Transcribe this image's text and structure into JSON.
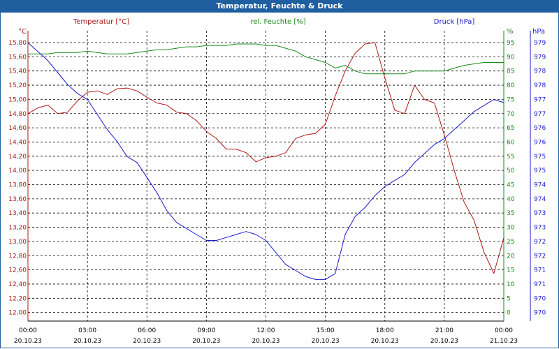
{
  "window": {
    "title": "Temperatur, Feuchte & Druck"
  },
  "colors": {
    "temperature": "#b01818",
    "humidity": "#1a8a1a",
    "pressure": "#1a1acc",
    "grid": "#000000",
    "titlebar": "#1f5fa0"
  },
  "chart_data": {
    "type": "line",
    "title": "Temperatur, Feuchte & Druck",
    "grid": true,
    "x_ticks": [
      {
        "time": "00:00",
        "date": "20.10.23"
      },
      {
        "time": "03:00",
        "date": "20.10.23"
      },
      {
        "time": "06:00",
        "date": "20.10.23"
      },
      {
        "time": "09:00",
        "date": "20.10.23"
      },
      {
        "time": "12:00",
        "date": "20.10.23"
      },
      {
        "time": "15:00",
        "date": "20.10.23"
      },
      {
        "time": "18:00",
        "date": "20.10.23"
      },
      {
        "time": "21:00",
        "date": "20.10.23"
      },
      {
        "time": "00:00",
        "date": "21.10.23"
      }
    ],
    "x_hours": [
      0,
      0.5,
      1,
      1.5,
      2,
      2.5,
      3,
      3.5,
      4,
      4.5,
      5,
      5.5,
      6,
      6.5,
      7,
      7.5,
      8,
      8.5,
      9,
      9.5,
      10,
      10.5,
      11,
      11.5,
      12,
      12.5,
      13,
      13.5,
      14,
      14.5,
      15,
      15.5,
      16,
      16.5,
      17,
      17.5,
      18,
      18.5,
      19,
      19.5,
      20,
      20.5,
      21,
      21.5,
      22,
      22.5,
      23,
      23.5,
      24
    ],
    "axes": {
      "temperature": {
        "label": "Temperatur [°C]",
        "unit": "°C",
        "ylim": [
          12.0,
          15.8
        ],
        "ticks": [
          "15,80",
          "15,60",
          "15,40",
          "15,20",
          "15,00",
          "14,80",
          "14,60",
          "14,40",
          "14,20",
          "14,00",
          "13,80",
          "13,60",
          "13,40",
          "13,20",
          "13,00",
          "12,80",
          "12,60",
          "12,40",
          "12,20",
          "12,00"
        ]
      },
      "humidity": {
        "label": "rel. Feuchte [%]",
        "unit": "%",
        "ylim": [
          0,
          100
        ],
        "ticks": [
          "95",
          "90",
          "85",
          "80",
          "75",
          "70",
          "65",
          "60",
          "55",
          "50",
          "45",
          "40",
          "35",
          "30",
          "25",
          "20",
          "15",
          "10",
          "5",
          "0"
        ]
      },
      "pressure": {
        "label": "Druck [hPa]",
        "unit": "hPa",
        "ylim": [
          970,
          979.5
        ],
        "ticks": [
          "979",
          "979",
          "978",
          "978",
          "977",
          "977",
          "976",
          "976",
          "975",
          "975",
          "974",
          "974",
          "973",
          "973",
          "972",
          "972",
          "971",
          "971",
          "970",
          "970"
        ]
      }
    },
    "series": [
      {
        "name": "Temperatur [°C]",
        "axis": "temperature",
        "values": [
          14.8,
          14.88,
          14.92,
          14.8,
          14.82,
          14.98,
          15.1,
          15.12,
          15.07,
          15.15,
          15.16,
          15.12,
          15.03,
          14.95,
          14.92,
          14.82,
          14.8,
          14.7,
          14.55,
          14.45,
          14.3,
          14.3,
          14.25,
          14.12,
          14.18,
          14.2,
          14.25,
          14.45,
          14.5,
          14.52,
          14.65,
          15.05,
          15.4,
          15.65,
          15.78,
          15.8,
          15.3,
          14.85,
          14.8,
          15.2,
          15.0,
          14.95,
          14.5,
          14.0,
          13.55,
          13.3,
          12.85,
          12.55,
          13.05
        ]
      },
      {
        "name": "rel. Feuchte [%]",
        "axis": "humidity",
        "values": [
          91,
          91,
          91,
          91.5,
          91.5,
          91.5,
          92,
          91.5,
          91,
          91,
          91,
          91.5,
          92,
          92.5,
          92.5,
          93,
          93.5,
          93.5,
          94,
          94,
          94,
          94.5,
          94.5,
          94.5,
          94,
          94,
          93,
          92,
          90,
          89,
          88,
          86,
          87,
          85,
          84,
          84,
          84,
          84,
          84,
          85,
          85,
          85,
          85,
          86,
          87,
          87.5,
          88,
          88,
          88
        ]
      },
      {
        "name": "Druck [hPa]",
        "axis": "pressure",
        "values": [
          979.0,
          978.7,
          978.4,
          978.0,
          977.6,
          977.3,
          977.1,
          976.6,
          976.1,
          975.7,
          975.2,
          975.0,
          974.5,
          974.0,
          973.4,
          973.0,
          972.8,
          972.6,
          972.4,
          972.4,
          972.5,
          972.6,
          972.7,
          972.6,
          972.4,
          972.0,
          971.6,
          971.4,
          971.2,
          971.1,
          971.1,
          971.3,
          972.6,
          973.2,
          973.5,
          973.9,
          974.2,
          974.4,
          974.6,
          975.0,
          975.3,
          975.6,
          975.8,
          976.1,
          976.4,
          976.7,
          976.9,
          977.1,
          977.0
        ]
      }
    ]
  }
}
